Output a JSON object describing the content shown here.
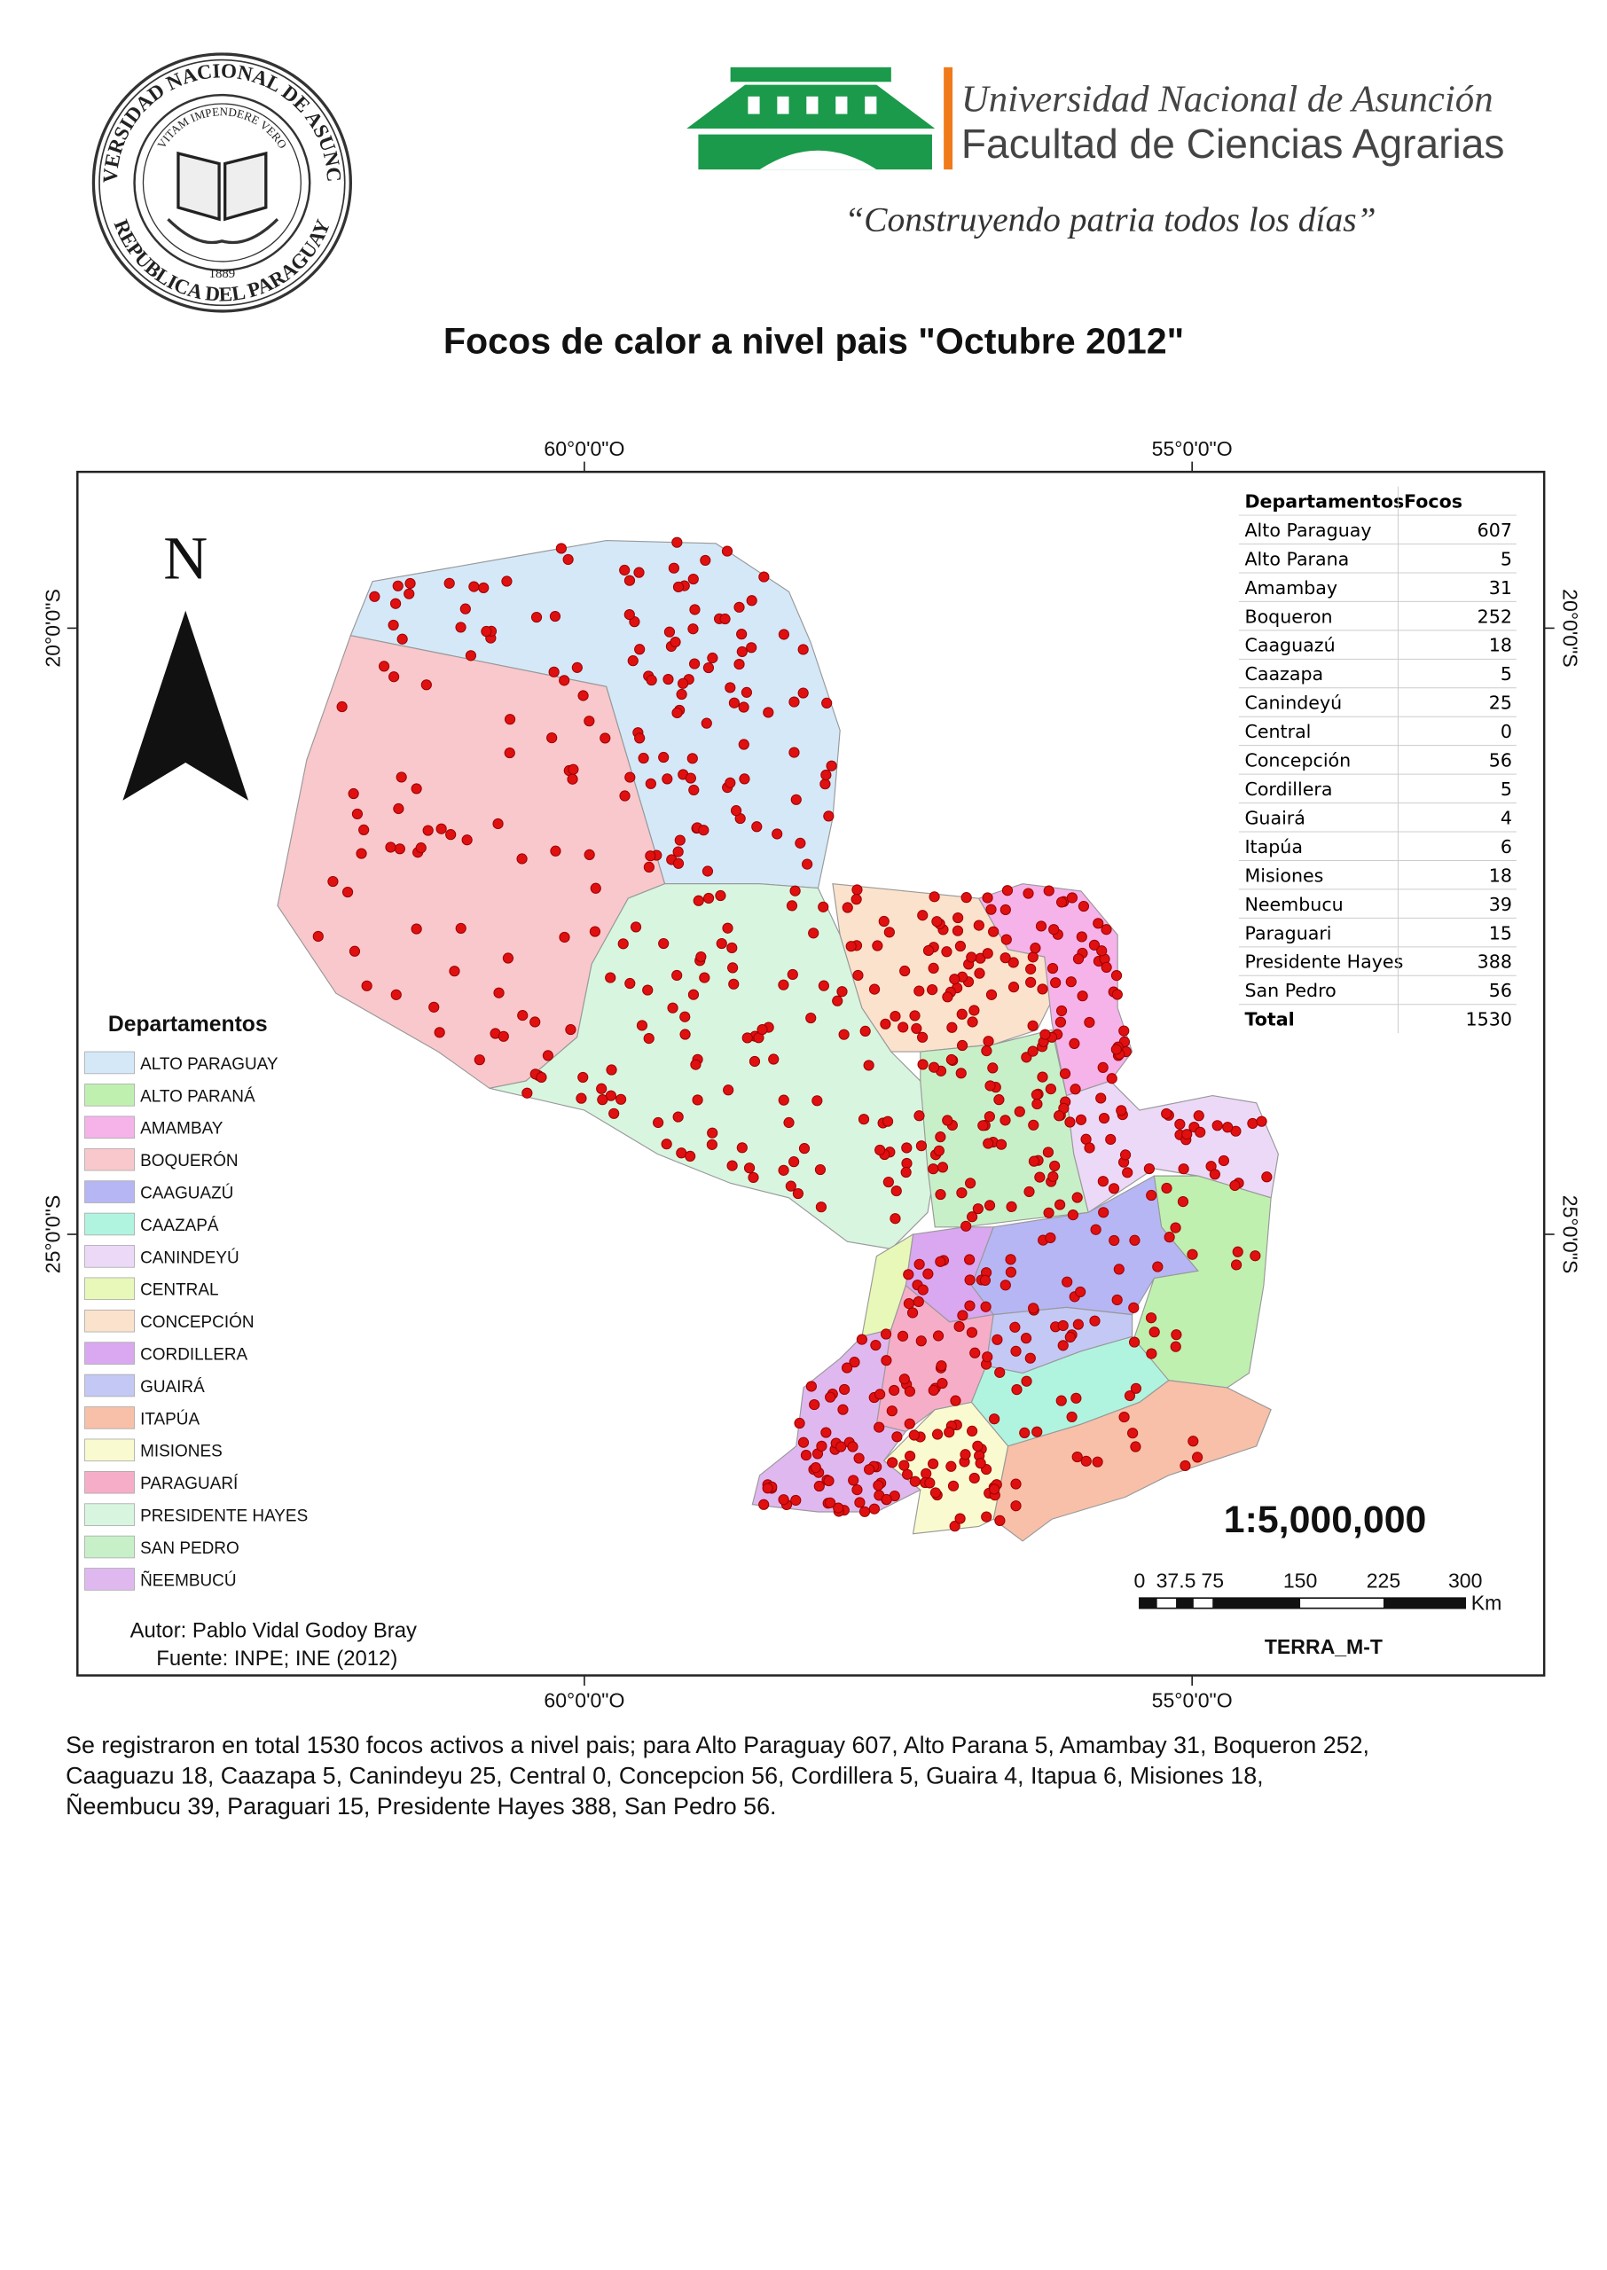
{
  "header": {
    "seal": {
      "name": "UNIVERSIDAD NACIONAL DE ASUNCION",
      "motto": "VITAM IMPENDERE VERO",
      "year": "1889",
      "country": "REPUBLICA DEL PARAGUAY"
    },
    "university": "Universidad Nacional de Asunción",
    "faculty": "Facultad de Ciencias Agrarias",
    "slogan": "“Construyendo patria todos los días”"
  },
  "title": "Focos de calor a nivel pais \"Octubre 2012\"",
  "map": {
    "longitudes": [
      "60°0'0\"O",
      "55°0'0\"O"
    ],
    "latitudes": [
      "20°0'0\"S",
      "25°0'0\"S"
    ],
    "north": "N",
    "legend": {
      "title": "Departamentos",
      "items": [
        "ALTO PARAGUAY",
        "ALTO PARANÁ",
        "AMAMBAY",
        "BOQUERÓN",
        "CAAGUAZÚ",
        "CAAZAPÁ",
        "CANINDEYÚ",
        "CENTRAL",
        "CONCEPCIÓN",
        "CORDILLERA",
        "GUAIRÁ",
        "ITAPÚA",
        "MISIONES",
        "PARAGUARÍ",
        "PRESIDENTE HAYES",
        "SAN PEDRO",
        "ÑEEMBUCÚ"
      ]
    },
    "table": {
      "columns": [
        "Departamentos",
        "Focos"
      ],
      "rows": [
        [
          "Alto Paraguay",
          607
        ],
        [
          "Alto Parana",
          5
        ],
        [
          "Amambay",
          31
        ],
        [
          "Boqueron",
          252
        ],
        [
          "Caaguazú",
          18
        ],
        [
          "Caazapa",
          5
        ],
        [
          "Canindeyú",
          25
        ],
        [
          "Central",
          0
        ],
        [
          "Concepción",
          56
        ],
        [
          "Cordillera",
          5
        ],
        [
          "Guairá",
          4
        ],
        [
          "Itapúa",
          6
        ],
        [
          "Misiones",
          18
        ],
        [
          "Neembucu",
          39
        ],
        [
          "Paraguari",
          15
        ],
        [
          "Presidente Hayes",
          388
        ],
        [
          "San Pedro",
          56
        ]
      ],
      "total": [
        "Total",
        1530
      ]
    },
    "scale": "1:5,000,000",
    "scale_bar": {
      "labels": [
        "0",
        "37.5",
        "75",
        "150",
        "225",
        "300"
      ],
      "unit": "Km"
    },
    "projection": "TERRA_M-T",
    "author": "Autor: Pablo Vidal Godoy Bray",
    "source": "Fuente: INPE; INE (2012)"
  },
  "summary": [
    "Se registraron en total 1530 focos activos a nivel pais; para Alto Paraguay 607, Alto Parana 5, Amambay 31, Boqueron 252,",
    "Caaguazu 18, Caazapa 5, Canindeyu 25, Central 0, Concepcion 56, Cordillera 5, Guaira 4, Itapua 6, Misiones 18,",
    "Ñeembucu 39, Paraguari 15, Presidente Hayes 388, San Pedro 56."
  ]
}
